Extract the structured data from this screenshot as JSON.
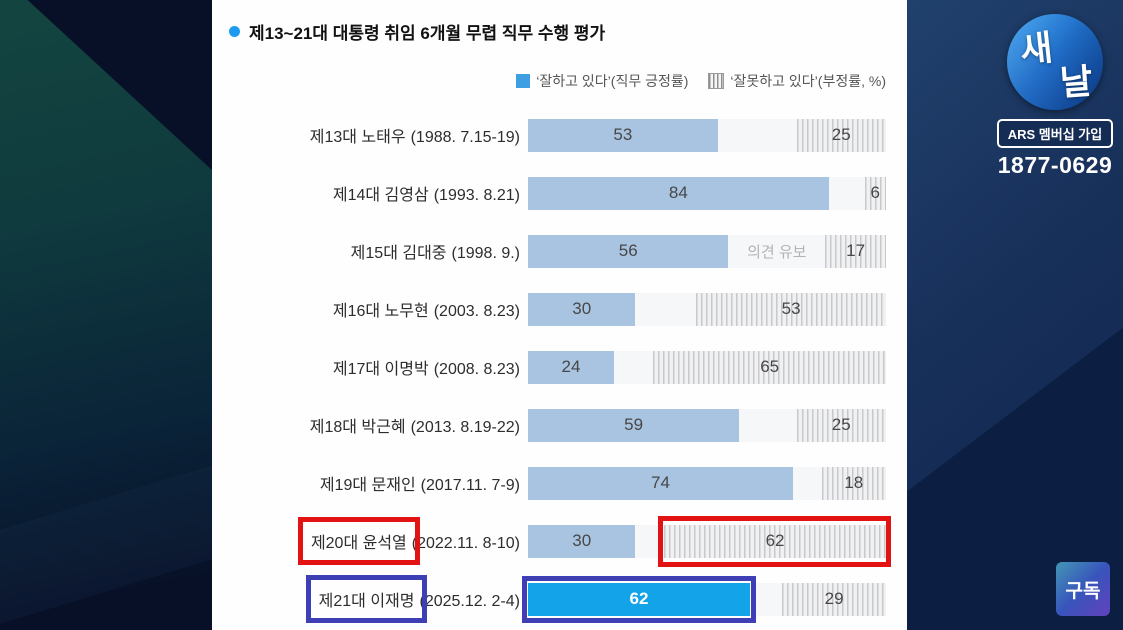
{
  "broadcast": {
    "logo": {
      "char_top": "새",
      "char_bottom": "날"
    },
    "ars_label": "ARS 멤버십 가입",
    "phone": "1877-0629",
    "subscribe_label": "구독"
  },
  "chart": {
    "title": "제13~21대 대통령 취임 6개월 무렵 직무 수행 평가",
    "legend": {
      "positive_label": "‘잘하고 있다’(직무 긍정률)",
      "negative_label": "‘잘못하고 있다’(부정률, %)"
    },
    "rows": [
      {
        "name": "제13대 노태우",
        "date": "(1988. 7.15-19)",
        "positive": 53,
        "negative": 25
      },
      {
        "name": "제14대 김영삼",
        "date": "(1993. 8.21)",
        "positive": 84,
        "negative": 6
      },
      {
        "name": "제15대 김대중",
        "date": "(1998. 9.)",
        "positive": 56,
        "negative": 17,
        "middle_text": "의견 유보"
      },
      {
        "name": "제16대 노무현",
        "date": "(2003. 8.23)",
        "positive": 30,
        "negative": 53
      },
      {
        "name": "제17대 이명박",
        "date": "(2008. 8.23)",
        "positive": 24,
        "negative": 65
      },
      {
        "name": "제18대 박근혜",
        "date": "(2013. 8.19-22)",
        "positive": 59,
        "negative": 25
      },
      {
        "name": "제19대 문재인",
        "date": "(2017.11. 7-9)",
        "positive": 74,
        "negative": 18
      },
      {
        "name": "제20대 윤석열",
        "date": "(2022.11. 8-10)",
        "positive": 30,
        "negative": 62,
        "highlight": {
          "color": "#e31313",
          "label": true,
          "bar": "neg"
        }
      },
      {
        "name": "제21대 이재명",
        "date": "(2025.12. 2-4)",
        "positive": 62,
        "negative": 29,
        "positive_style": "bright",
        "highlight": {
          "color": "#3e3eb5",
          "label": true,
          "bar": "pos"
        }
      }
    ]
  },
  "chart_data": {
    "type": "bar",
    "orientation": "horizontal",
    "title": "제13~21대 대통령 취임 6개월 무렵 직무 수행 평가",
    "categories": [
      "제13대 노태우 (1988. 7.15-19)",
      "제14대 김영삼 (1993. 8.21)",
      "제15대 김대중 (1998. 9.)",
      "제16대 노무현 (2003. 8.23)",
      "제17대 이명박 (2008. 8.23)",
      "제18대 박근혜 (2013. 8.19-22)",
      "제19대 문재인 (2017.11. 7-9)",
      "제20대 윤석열 (2022.11. 8-10)",
      "제21대 이재명 (2025.12. 2-4)"
    ],
    "series": [
      {
        "name": "‘잘하고 있다’(직무 긍정률)",
        "values": [
          53,
          84,
          56,
          30,
          24,
          59,
          74,
          30,
          62
        ]
      },
      {
        "name": "‘잘못하고 있다’(부정률, %)",
        "values": [
          25,
          6,
          17,
          53,
          65,
          25,
          18,
          62,
          29
        ]
      }
    ],
    "xlim": [
      0,
      100
    ],
    "legend_position": "top-right",
    "annotations": [
      "제15대 김대중 row shows '의견 유보' text between the two bars",
      "제20대 윤석열 label and its negative bar (62) are outlined with red boxes",
      "제21대 이재명 label and its positive bar (62, bright blue fill) are outlined with dark-blue boxes"
    ],
    "colors": {
      "positive_bar": "#a9c4e1",
      "positive_bar_highlighted": "#12a3e8",
      "negative_bar_stripe": "#c6c9cd",
      "red_box": "#e31313",
      "blue_box": "#3e3eb5",
      "title_bullet": "#1e9bf0"
    }
  }
}
